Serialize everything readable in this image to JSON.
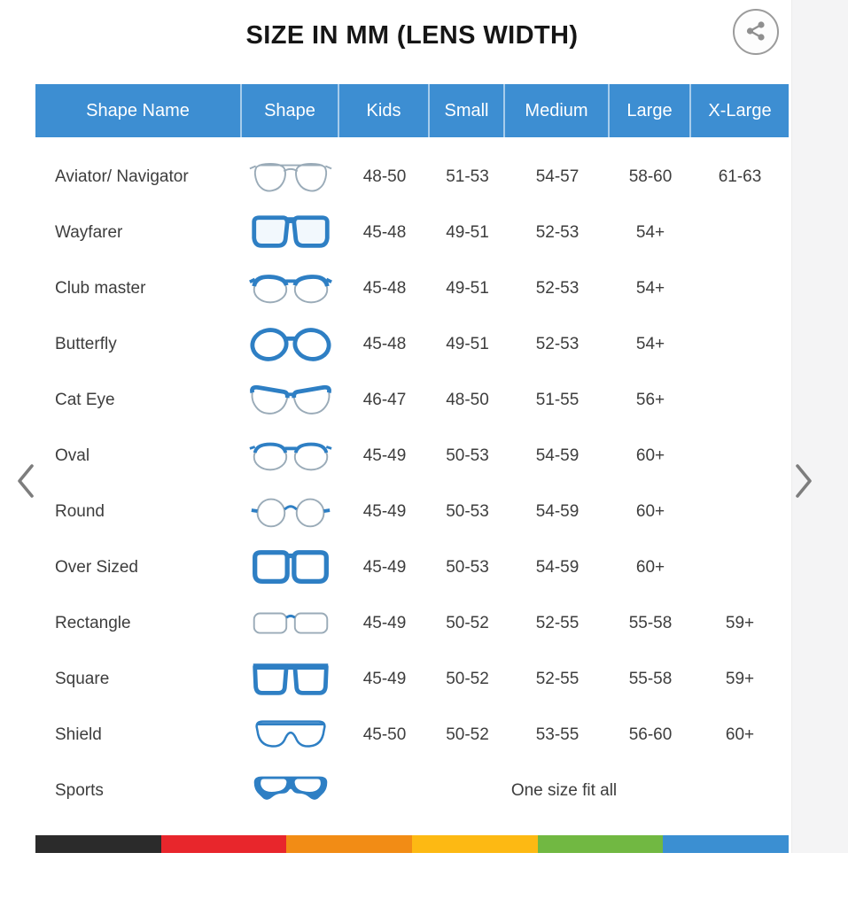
{
  "title": "SIZE IN MM (LENS WIDTH)",
  "share": {
    "icon": "share-icon"
  },
  "nav": {
    "prev_icon": "chevron-left-icon",
    "next_icon": "chevron-right-icon"
  },
  "table": {
    "headers": [
      "Shape Name",
      "Shape",
      "Kids",
      "Small",
      "Medium",
      "Large",
      "X-Large"
    ],
    "rows": [
      {
        "name": "Aviator/ Navigator",
        "icon": "aviator-glasses-icon",
        "sizes": [
          "48-50",
          "51-53",
          "54-57",
          "58-60",
          "61-63"
        ]
      },
      {
        "name": "Wayfarer",
        "icon": "wayfarer-glasses-icon",
        "sizes": [
          "45-48",
          "49-51",
          "52-53",
          "54+",
          ""
        ]
      },
      {
        "name": "Club master",
        "icon": "clubmaster-glasses-icon",
        "sizes": [
          "45-48",
          "49-51",
          "52-53",
          "54+",
          ""
        ]
      },
      {
        "name": "Butterfly",
        "icon": "butterfly-glasses-icon",
        "sizes": [
          "45-48",
          "49-51",
          "52-53",
          "54+",
          ""
        ]
      },
      {
        "name": "Cat Eye",
        "icon": "cateye-glasses-icon",
        "sizes": [
          "46-47",
          "48-50",
          "51-55",
          "56+",
          ""
        ]
      },
      {
        "name": "Oval",
        "icon": "oval-glasses-icon",
        "sizes": [
          "45-49",
          "50-53",
          "54-59",
          "60+",
          ""
        ]
      },
      {
        "name": "Round",
        "icon": "round-glasses-icon",
        "sizes": [
          "45-49",
          "50-53",
          "54-59",
          "60+",
          ""
        ]
      },
      {
        "name": "Over Sized",
        "icon": "oversized-glasses-icon",
        "sizes": [
          "45-49",
          "50-53",
          "54-59",
          "60+",
          ""
        ]
      },
      {
        "name": "Rectangle",
        "icon": "rectangle-glasses-icon",
        "sizes": [
          "45-49",
          "50-52",
          "52-55",
          "55-58",
          "59+"
        ]
      },
      {
        "name": "Square",
        "icon": "square-glasses-icon",
        "sizes": [
          "45-49",
          "50-52",
          "52-55",
          "55-58",
          "59+"
        ]
      },
      {
        "name": "Shield",
        "icon": "shield-glasses-icon",
        "sizes": [
          "45-50",
          "50-52",
          "53-55",
          "56-60",
          "60+"
        ]
      },
      {
        "name": "Sports",
        "icon": "sports-glasses-icon",
        "span_text": "One size fit all"
      }
    ]
  },
  "colors": {
    "header_bg": "#3d8ed2",
    "frame_blue": "#2e7fc4",
    "bottom_bar": [
      "#2b2b2b",
      "#e8262c",
      "#f28c15",
      "#fdb913",
      "#71b842",
      "#3b8fd2"
    ]
  }
}
